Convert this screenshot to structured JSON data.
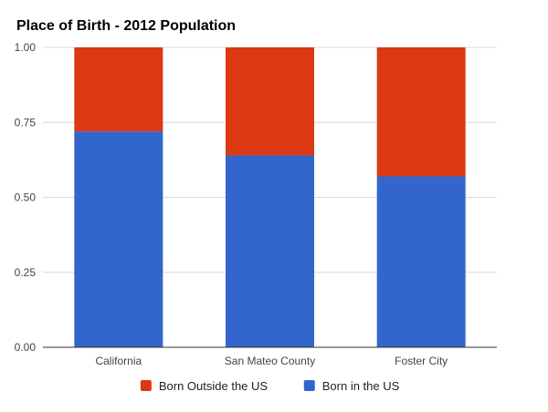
{
  "chart_data": {
    "type": "bar",
    "stacked": true,
    "title": "Place of Birth - 2012 Population",
    "xlabel": "",
    "ylabel": "",
    "categories": [
      "California",
      "San Mateo County",
      "Foster City"
    ],
    "series": [
      {
        "name": "Born in the US",
        "color": "#3366cc",
        "values": [
          0.72,
          0.64,
          0.57
        ]
      },
      {
        "name": "Born Outside the US",
        "color": "#dc3912",
        "values": [
          0.28,
          0.36,
          0.43
        ]
      }
    ],
    "ylim": [
      0,
      1
    ],
    "yticks": [
      "0.00",
      "0.25",
      "0.50",
      "0.75",
      "1.00"
    ],
    "grid": true,
    "legend_position": "bottom",
    "legend_order": [
      "Born Outside the US",
      "Born in the US"
    ]
  }
}
